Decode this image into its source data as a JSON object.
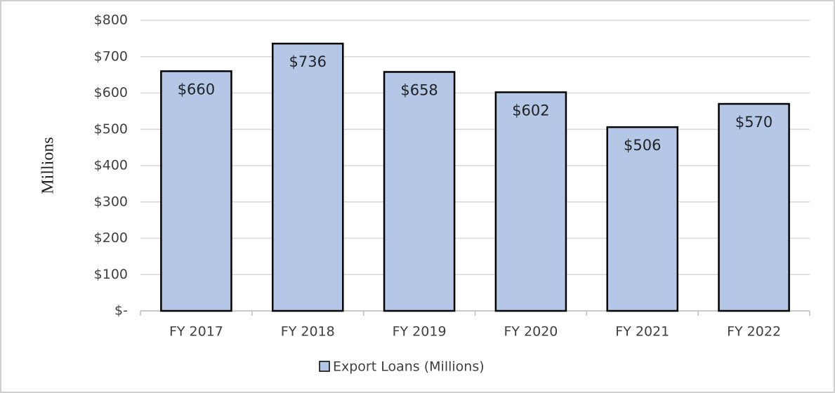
{
  "chart_data": {
    "type": "bar",
    "y_label": "Millions",
    "categories": [
      "FY 2017",
      "FY 2018",
      "FY 2019",
      "FY 2020",
      "FY 2021",
      "FY 2022"
    ],
    "series": [
      {
        "name": "Export Loans (Millions)",
        "color": "#b4c7e7",
        "values": [
          660,
          736,
          658,
          602,
          506,
          570
        ],
        "value_labels": [
          "$660",
          "$736",
          "$658",
          "$602",
          "$506",
          "$570"
        ]
      }
    ],
    "ylim": [
      0,
      800
    ],
    "yticks": [
      {
        "value": 0,
        "label": "$-"
      },
      {
        "value": 100,
        "label": "$100"
      },
      {
        "value": 200,
        "label": "$200"
      },
      {
        "value": 300,
        "label": "$300"
      },
      {
        "value": 400,
        "label": "$400"
      },
      {
        "value": 500,
        "label": "$500"
      },
      {
        "value": 600,
        "label": "$600"
      },
      {
        "value": 700,
        "label": "$700"
      },
      {
        "value": 800,
        "label": "$800"
      }
    ],
    "grid": true,
    "legend": "bottom"
  }
}
